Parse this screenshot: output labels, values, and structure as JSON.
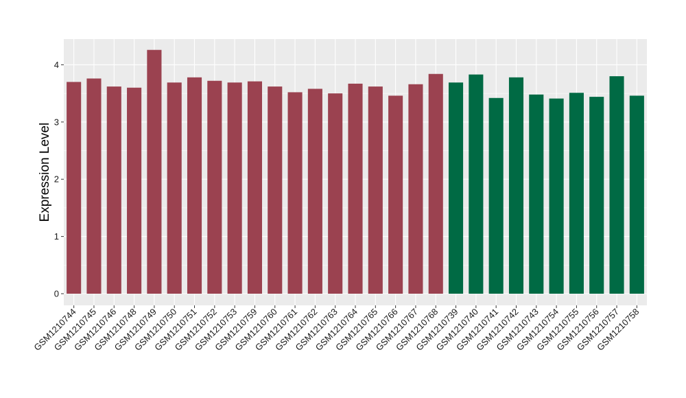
{
  "chart_data": {
    "type": "bar",
    "ylabel": "Expression Level",
    "xlabel": "",
    "ylim": [
      0,
      4.45
    ],
    "y_ticks": [
      0,
      1,
      2,
      3,
      4
    ],
    "grid": true,
    "categories": [
      "GSM1210744",
      "GSM1210745",
      "GSM1210746",
      "GSM1210748",
      "GSM1210749",
      "GSM1210750",
      "GSM1210751",
      "GSM1210752",
      "GSM1210753",
      "GSM1210759",
      "GSM1210760",
      "GSM1210761",
      "GSM1210762",
      "GSM1210763",
      "GSM1210764",
      "GSM1210765",
      "GSM1210766",
      "GSM1210767",
      "GSM1210768",
      "GSM1210739",
      "GSM1210740",
      "GSM1210741",
      "GSM1210742",
      "GSM1210743",
      "GSM1210754",
      "GSM1210755",
      "GSM1210756",
      "GSM1210757",
      "GSM1210758"
    ],
    "values": [
      3.7,
      3.76,
      3.62,
      3.6,
      4.26,
      3.69,
      3.78,
      3.72,
      3.69,
      3.71,
      3.62,
      3.52,
      3.58,
      3.5,
      3.67,
      3.62,
      3.46,
      3.66,
      3.84,
      3.69,
      3.83,
      3.42,
      3.78,
      3.48,
      3.41,
      3.51,
      3.44,
      3.8,
      3.46
    ],
    "groups": [
      1,
      1,
      1,
      1,
      1,
      1,
      1,
      1,
      1,
      1,
      1,
      1,
      1,
      1,
      1,
      1,
      1,
      1,
      1,
      2,
      2,
      2,
      2,
      2,
      2,
      2,
      2,
      2,
      2
    ],
    "colors": {
      "group_1": "#9B4250",
      "group_2": "#006A44",
      "panel_background": "#EBEBEB",
      "grid_line": "#FFFFFF"
    }
  }
}
